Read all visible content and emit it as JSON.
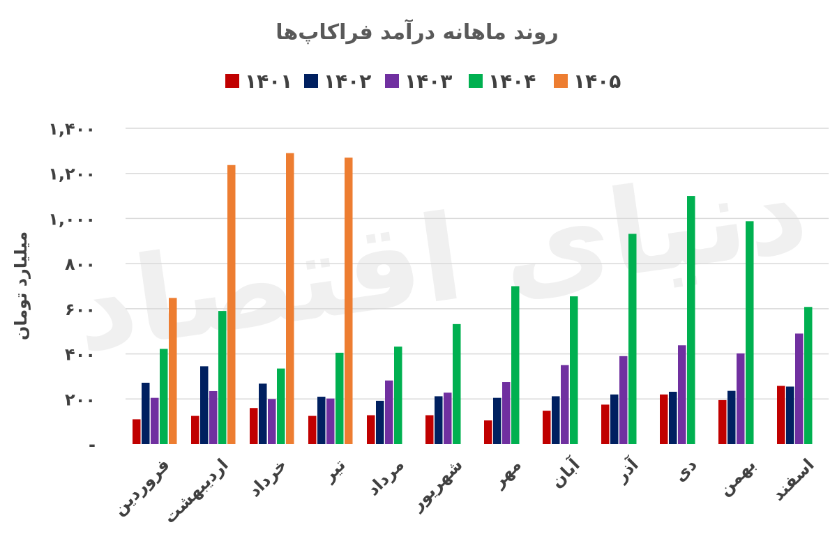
{
  "chart_data": {
    "type": "bar",
    "title": "روند ماهانه درآمد فراکاپ‌ها",
    "ylabel": "میلیارد تومان",
    "xlabel": "",
    "ylim": [
      0,
      1400
    ],
    "y_ticks": [
      {
        "value": 0,
        "label": "-"
      },
      {
        "value": 200,
        "label": "۲۰۰"
      },
      {
        "value": 400,
        "label": "۴۰۰"
      },
      {
        "value": 600,
        "label": "۶۰۰"
      },
      {
        "value": 800,
        "label": "۸۰۰"
      },
      {
        "value": 1000,
        "label": "۱,۰۰۰"
      },
      {
        "value": 1200,
        "label": "۱,۲۰۰"
      },
      {
        "value": 1400,
        "label": "۱,۴۰۰"
      }
    ],
    "grid": true,
    "legend_position": "top-center",
    "categories": [
      "فروردین",
      "اردیبهشت",
      "خرداد",
      "تیر",
      "مرداد",
      "شهریور",
      "مهر",
      "آبان",
      "آذر",
      "دی",
      "بهمن",
      "اسفند"
    ],
    "series": [
      {
        "name": "۱۴۰۱",
        "color": "#c00000",
        "values": [
          110,
          125,
          160,
          125,
          128,
          128,
          105,
          148,
          175,
          220,
          195,
          258
        ]
      },
      {
        "name": "۱۴۰۲",
        "color": "#002060",
        "values": [
          272,
          345,
          268,
          210,
          192,
          212,
          205,
          212,
          220,
          232,
          236,
          255
        ]
      },
      {
        "name": "۱۴۰۳",
        "color": "#7030a0",
        "values": [
          205,
          235,
          200,
          202,
          282,
          228,
          275,
          350,
          390,
          438,
          402,
          490
        ]
      },
      {
        "name": "۱۴۰۴",
        "color": "#00b050",
        "values": [
          422,
          590,
          335,
          405,
          432,
          532,
          700,
          655,
          932,
          1100,
          988,
          608
        ]
      },
      {
        "name": "۱۴۰۵",
        "color": "#ed7d31",
        "values": [
          648,
          1237,
          1290,
          1270,
          null,
          null,
          null,
          null,
          null,
          null,
          null,
          null
        ]
      }
    ]
  }
}
